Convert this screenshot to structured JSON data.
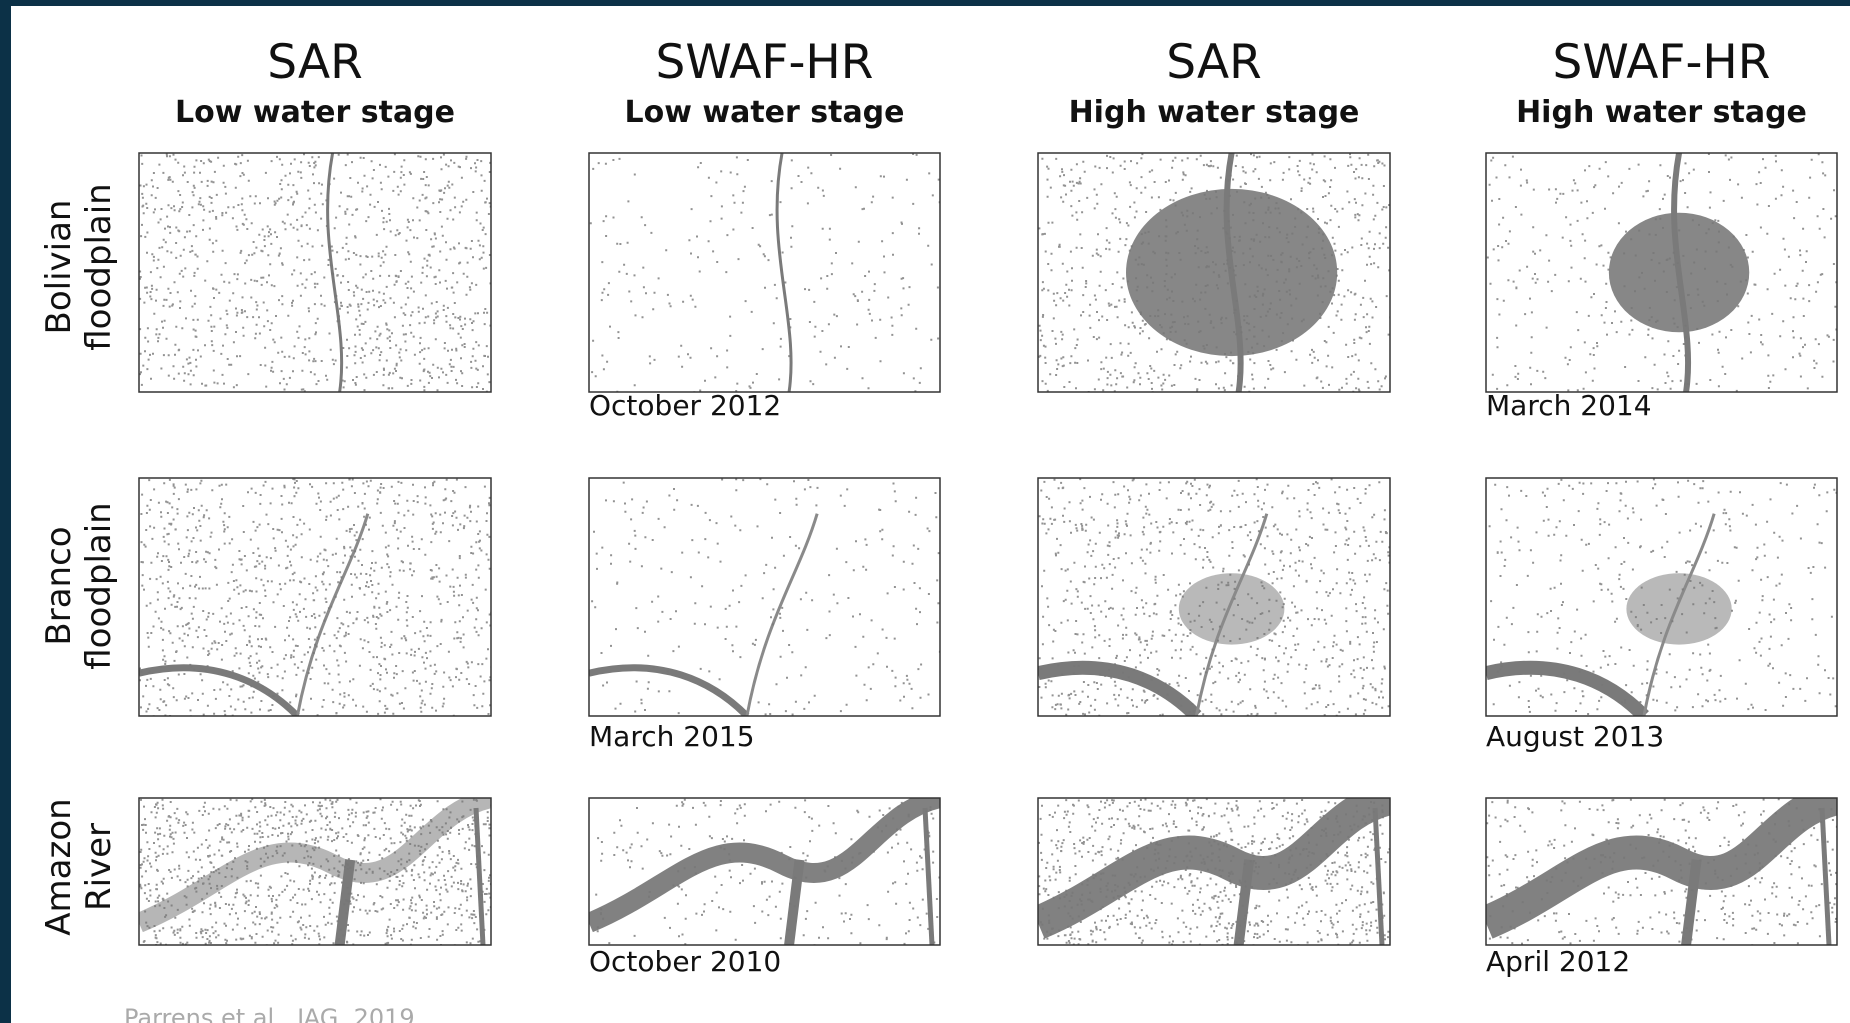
{
  "columns": [
    {
      "title": "SAR",
      "subtitle": "Low water stage"
    },
    {
      "title": "SWAF-HR",
      "subtitle": "Low water stage"
    },
    {
      "title": "SAR",
      "subtitle": "High water stage"
    },
    {
      "title": "SWAF-HR",
      "subtitle": "High water stage"
    }
  ],
  "rows": [
    {
      "label": [
        "Bolivian",
        "floodplain"
      ],
      "low_water_date": "October 2012",
      "high_water_date": "March 2014"
    },
    {
      "label": [
        "Branco",
        "floodplain"
      ],
      "low_water_date": "March 2015",
      "high_water_date": "August 2013"
    },
    {
      "label": [
        "Amazon",
        "River"
      ],
      "low_water_date": "October 2010",
      "high_water_date": "April 2012"
    }
  ],
  "citation": "Parrens et al., JAG, 2019"
}
